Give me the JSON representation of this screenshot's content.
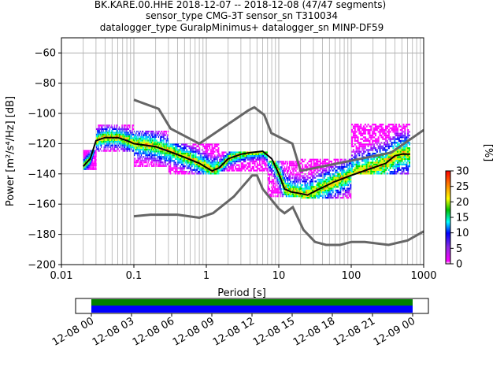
{
  "title_lines": [
    "BK.KARE.00.HHE   2018-12-07 -- 2018-12-08  (47/47 segments)",
    "sensor_type CMG-3T sensor_sn T310034",
    "datalogger_type GuralpMinimus+ datalogger_sn MINP-DF59"
  ],
  "chart_data": {
    "type": "heatmap",
    "xlabel": "Period [s]",
    "ylabel": "Power [m²/s⁴/Hz] [dB]",
    "xscale": "log",
    "xlim": [
      0.01,
      1000
    ],
    "ylim": [
      -200,
      -50
    ],
    "xticks": [
      {
        "value": 0.01,
        "label": "0.01"
      },
      {
        "value": 0.1,
        "label": "0.1"
      },
      {
        "value": 1,
        "label": "1"
      },
      {
        "value": 10,
        "label": "10"
      },
      {
        "value": 100,
        "label": "100"
      },
      {
        "value": 1000,
        "label": "1000"
      }
    ],
    "yticks": [
      -200,
      -180,
      -160,
      -140,
      -120,
      -100,
      -80,
      -60
    ],
    "grid": true,
    "mode_curve": [
      [
        0.02,
        -135
      ],
      [
        0.025,
        -130
      ],
      [
        0.03,
        -118
      ],
      [
        0.04,
        -116
      ],
      [
        0.06,
        -116
      ],
      [
        0.08,
        -118
      ],
      [
        0.1,
        -120
      ],
      [
        0.2,
        -122
      ],
      [
        0.3,
        -125
      ],
      [
        0.5,
        -129
      ],
      [
        0.8,
        -133
      ],
      [
        1.2,
        -138
      ],
      [
        1.5,
        -136
      ],
      [
        2,
        -130
      ],
      [
        3,
        -127
      ],
      [
        4,
        -126
      ],
      [
        6,
        -125
      ],
      [
        8,
        -130
      ],
      [
        10,
        -140
      ],
      [
        12,
        -150
      ],
      [
        15,
        -152
      ],
      [
        20,
        -153
      ],
      [
        25,
        -154
      ],
      [
        30,
        -152
      ],
      [
        40,
        -149
      ],
      [
        60,
        -145
      ],
      [
        100,
        -141
      ],
      [
        150,
        -138
      ],
      [
        200,
        -136
      ],
      [
        300,
        -133
      ],
      [
        400,
        -128
      ],
      [
        500,
        -127
      ],
      [
        650,
        -127
      ]
    ],
    "heat_bands": [
      {
        "x_start": 0.02,
        "x_end": 0.03,
        "y_low": -137,
        "y_high": -125
      },
      {
        "x_start": 0.03,
        "x_end": 0.1,
        "y_low": -125,
        "y_high": -107
      },
      {
        "x_start": 0.1,
        "x_end": 0.3,
        "y_low": -135,
        "y_high": -112
      },
      {
        "x_start": 0.3,
        "x_end": 1.5,
        "y_low": -140,
        "y_high": -120
      },
      {
        "x_start": 1.5,
        "x_end": 7,
        "y_low": -138,
        "y_high": -125
      },
      {
        "x_start": 7,
        "x_end": 20,
        "y_low": -155,
        "y_high": -132
      },
      {
        "x_start": 20,
        "x_end": 100,
        "y_low": -156,
        "y_high": -130
      },
      {
        "x_start": 100,
        "x_end": 650,
        "y_low": -140,
        "y_high": -107
      }
    ],
    "nhnm": [
      [
        0.1,
        -91
      ],
      [
        0.22,
        -97
      ],
      [
        0.32,
        -110
      ],
      [
        0.8,
        -120
      ],
      [
        3.8,
        -98
      ],
      [
        4.6,
        -96
      ],
      [
        6.3,
        -101
      ],
      [
        7.9,
        -113
      ],
      [
        15.4,
        -120
      ],
      [
        20,
        -138
      ],
      [
        354.8,
        -126
      ],
      [
        1000,
        -111
      ]
    ],
    "nlnm": [
      [
        0.1,
        -168
      ],
      [
        0.17,
        -167
      ],
      [
        0.4,
        -167
      ],
      [
        0.8,
        -169
      ],
      [
        1.24,
        -166
      ],
      [
        2.4,
        -155
      ],
      [
        4.3,
        -141
      ],
      [
        5,
        -141
      ],
      [
        6,
        -150
      ],
      [
        10,
        -163
      ],
      [
        12,
        -166
      ],
      [
        15.6,
        -162
      ],
      [
        21.9,
        -177
      ],
      [
        31.6,
        -185
      ],
      [
        45,
        -187
      ],
      [
        70,
        -187
      ],
      [
        101,
        -185
      ],
      [
        154,
        -185
      ],
      [
        328,
        -187
      ],
      [
        600,
        -184
      ],
      [
        1000,
        -178
      ]
    ],
    "colorbar": {
      "label": "[%]",
      "ticks": [
        0,
        5,
        10,
        15,
        20,
        25,
        30
      ],
      "min": 0,
      "max": 30
    },
    "coverage": {
      "tick_labels": [
        "12-08 00",
        "12-08 03",
        "12-08 06",
        "12-08 09",
        "12-08 12",
        "12-08 15",
        "12-08 18",
        "12-08 21",
        "12-09 00"
      ],
      "bar_colors": {
        "top": "#008000",
        "bottom": "#0000ff"
      }
    }
  }
}
